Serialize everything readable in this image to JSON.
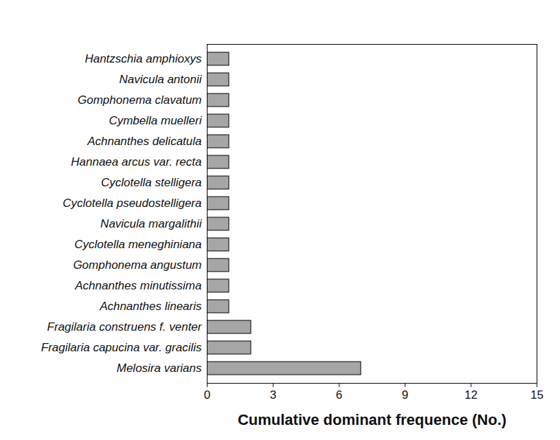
{
  "chart_data": {
    "type": "bar",
    "orientation": "horizontal",
    "x_label": "Cumulative dominant frequence (No.)",
    "categories": [
      "Hantzschia amphioxys",
      "Navicula antonii",
      "Gomphonema clavatum",
      "Cymbella muelleri",
      "Achnanthes delicatula",
      "Hannaea arcus var. recta",
      "Cyclotella stelligera",
      "Cyclotella pseudostelligera",
      "Navicula margalithii",
      "Cyclotella meneghiniana",
      "Gomphonema angustum",
      "Achnanthes minutissima",
      "Achnanthes linearis",
      "Fragilaria construens f. venter",
      "Fragilaria capucina var. gracilis",
      "Melosira varians"
    ],
    "values": [
      1,
      1,
      1,
      1,
      1,
      1,
      1,
      1,
      1,
      1,
      1,
      1,
      1,
      2,
      2,
      7
    ],
    "color": "#a6a6a6",
    "xlim": [
      0,
      15
    ],
    "xticks": [
      0,
      3,
      6,
      9,
      12,
      15
    ],
    "grid": false
  }
}
